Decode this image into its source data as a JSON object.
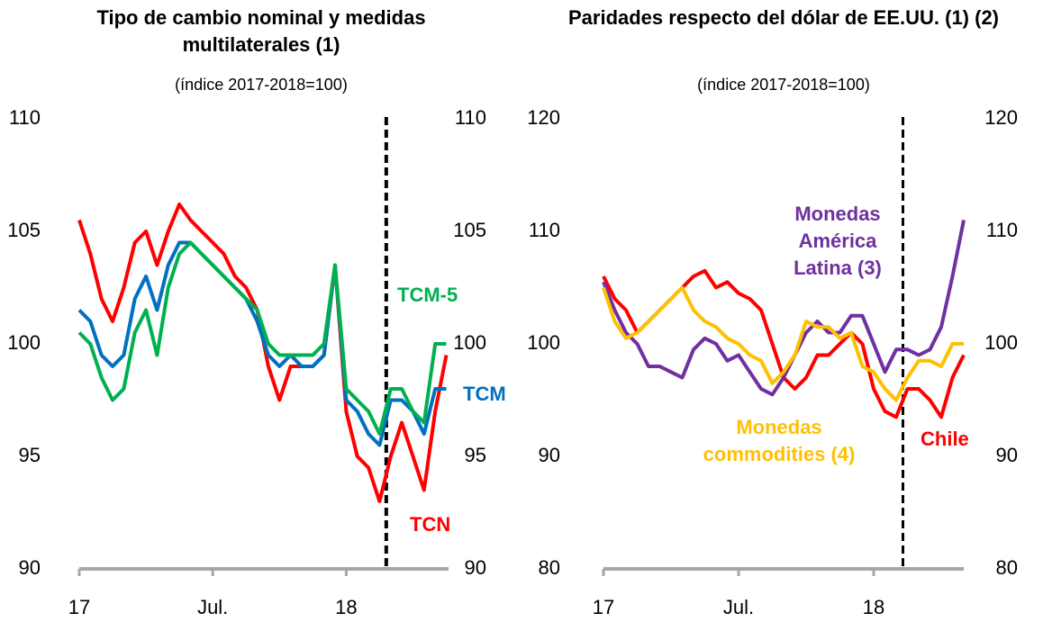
{
  "chart_data": [
    {
      "type": "line",
      "title": "Tipo de cambio nominal y medidas multilaterales (1)",
      "subtitle": "(índice 2017-2018=100)",
      "x": [
        0,
        0.5,
        1,
        1.5,
        2,
        2.5,
        3,
        3.5,
        4,
        4.5,
        5,
        5.5,
        6,
        6.5,
        7,
        7.5,
        8,
        8.5,
        9,
        9.5,
        10,
        10.5,
        11,
        11.5,
        12,
        12.5,
        13,
        13.5,
        14,
        14.5,
        15,
        15.5,
        16,
        16.5
      ],
      "xlim": [
        0,
        16.6
      ],
      "xticks": [
        {
          "value": 0,
          "label": "17"
        },
        {
          "value": 6,
          "label": "Jul."
        },
        {
          "value": 12,
          "label": "18"
        }
      ],
      "ylim": [
        90,
        110
      ],
      "yticks": [
        90,
        95,
        100,
        105,
        110
      ],
      "vline": 13.8,
      "series": [
        {
          "name": "TCN",
          "color": "#ff0000",
          "values": [
            105.5,
            104,
            102,
            101,
            102.5,
            104.5,
            105,
            103.5,
            105,
            106.2,
            105.5,
            105,
            104.5,
            104,
            103,
            102.5,
            101.5,
            99,
            97.5,
            99,
            99,
            99,
            99.5,
            103.5,
            97,
            95,
            94.5,
            93,
            95,
            96.5,
            95,
            93.5,
            97,
            99.5
          ]
        },
        {
          "name": "TCM",
          "color": "#0070c0",
          "values": [
            101.5,
            101,
            99.5,
            99,
            99.5,
            102,
            103,
            101.5,
            103.5,
            104.5,
            104.5,
            104,
            103.5,
            103,
            102.5,
            102,
            101,
            99.5,
            99,
            99.5,
            99,
            99,
            99.5,
            103.5,
            97.5,
            97,
            96,
            95.5,
            97.5,
            97.5,
            97,
            96,
            98,
            98
          ]
        },
        {
          "name": "TCM-5",
          "color": "#00b050",
          "values": [
            100.5,
            100,
            98.5,
            97.5,
            98,
            100.5,
            101.5,
            99.5,
            102.5,
            104,
            104.5,
            104,
            103.5,
            103,
            102.5,
            102,
            101.5,
            100,
            99.5,
            99.5,
            99.5,
            99.5,
            100,
            103.5,
            98,
            97.5,
            97,
            96,
            98,
            98,
            97,
            96.5,
            100,
            100
          ]
        }
      ]
    },
    {
      "type": "line",
      "title": "Paridades respecto del dólar de EE.UU. (1) (2)",
      "subtitle": "(índice 2017-2018=100)",
      "x": [
        0,
        0.5,
        1,
        1.5,
        2,
        2.5,
        3,
        3.5,
        4,
        4.5,
        5,
        5.5,
        6,
        6.5,
        7,
        7.5,
        8,
        8.5,
        9,
        9.5,
        10,
        10.5,
        11,
        11.5,
        12,
        12.5,
        13,
        13.5,
        14,
        14.5,
        15,
        15.5,
        16
      ],
      "xlim": [
        0,
        16
      ],
      "xticks": [
        {
          "value": 0,
          "label": "17"
        },
        {
          "value": 6,
          "label": "Jul."
        },
        {
          "value": 12,
          "label": "18"
        }
      ],
      "ylim": [
        80,
        120
      ],
      "yticks": [
        80,
        90,
        100,
        110,
        120
      ],
      "vline": 13.3,
      "series": [
        {
          "name": "Chile",
          "color": "#ff0000",
          "values": [
            106,
            104,
            103,
            101,
            102,
            103,
            104,
            105,
            106,
            106.5,
            105,
            105.5,
            104.5,
            104,
            103,
            100,
            97,
            96,
            97,
            99,
            99,
            100,
            101,
            100,
            96,
            94,
            93.5,
            96,
            96,
            95,
            93.5,
            97,
            99
          ]
        },
        {
          "name": "Monedas América Latina (3)",
          "color": "#7030a0",
          "values": [
            105.5,
            103,
            101,
            100,
            98,
            98,
            97.5,
            97,
            99.5,
            100.5,
            100,
            98.5,
            99,
            97.5,
            96,
            95.5,
            97,
            99,
            101,
            102,
            101,
            101,
            102.5,
            102.5,
            100,
            97.5,
            99.5,
            99.5,
            99,
            99.5,
            101.5,
            106,
            111
          ]
        },
        {
          "name": "Monedas commodities (4)",
          "color": "#ffc000",
          "values": [
            105,
            102,
            100.5,
            101,
            102,
            103,
            104,
            105,
            103,
            102,
            101.5,
            100.5,
            100,
            99,
            98.5,
            96.5,
            97.5,
            99,
            102,
            101.5,
            101.5,
            100.5,
            101,
            98,
            97.5,
            96,
            95,
            97,
            98.5,
            98.5,
            98,
            100,
            100
          ]
        }
      ]
    }
  ]
}
